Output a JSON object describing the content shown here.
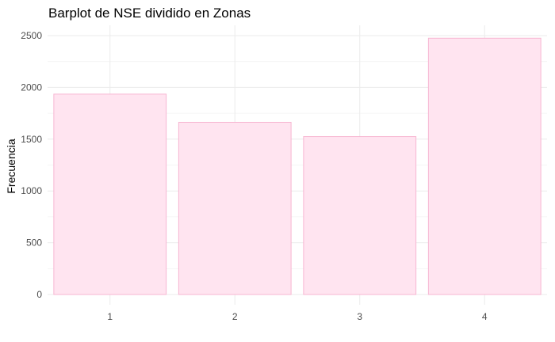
{
  "chart_data": {
    "type": "bar",
    "title": "Barplot de NSE dividido en Zonas",
    "xlabel": "",
    "ylabel": "Frecuencia",
    "categories": [
      "1",
      "2",
      "3",
      "4"
    ],
    "values": [
      1935,
      1663,
      1525,
      2475
    ],
    "ylim": [
      0,
      2600
    ],
    "yticks": [
      0,
      500,
      1000,
      1500,
      2000,
      2500
    ],
    "ytick_labels": [
      "0",
      "500",
      "1000",
      "1500",
      "2000",
      "2500"
    ],
    "grid": true,
    "bar_fill": "#ffe4f0",
    "bar_stroke": "#f7b6d2"
  }
}
